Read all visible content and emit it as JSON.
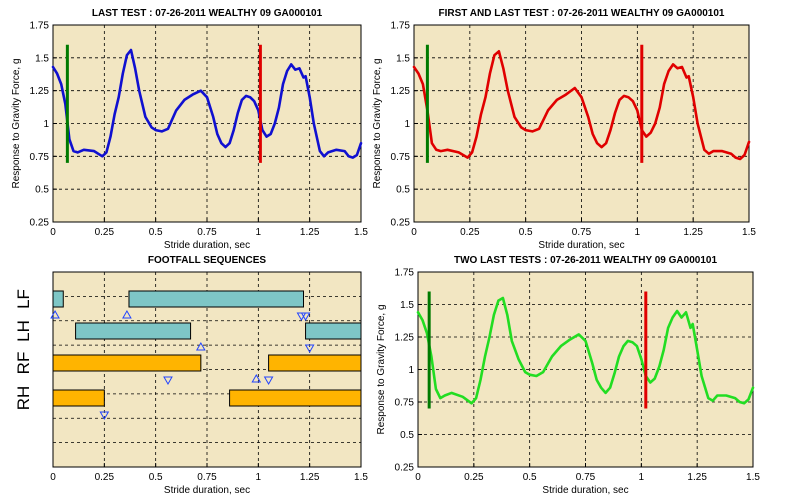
{
  "colors": {
    "plot_bg": "#f2e6c2",
    "grid": "#000000",
    "marker_start": "#007a00",
    "marker_end": "#e00000",
    "bar_front": "#7ec6c6",
    "bar_hind": "#ffb400",
    "triangle": "#2244ff"
  },
  "chart_data": [
    {
      "id": "last-test",
      "type": "line",
      "title": "LAST TEST : 07-26-2011 WEALTHY 09 GA000101",
      "xlabel": "Stride duration, sec",
      "ylabel": "Response to Gravity Force, g",
      "xlim": [
        0,
        1.5
      ],
      "ylim": [
        0.25,
        1.75
      ],
      "xticks": [
        "0",
        "0.25",
        "0.5",
        "0.75",
        "1",
        "1.25",
        "1.5"
      ],
      "yticks": [
        "0.25",
        "0.5",
        "0.75",
        "1",
        "1.25",
        "1.5",
        "1.75"
      ],
      "grid": true,
      "line_color": "#1010d0",
      "markers": [
        {
          "x": 0.07,
          "y0": 0.7,
          "y1": 1.6,
          "color": "#007a00"
        },
        {
          "x": 1.01,
          "y0": 0.7,
          "y1": 1.6,
          "color": "#e00000"
        }
      ],
      "series": [
        {
          "x": [
            0,
            0.02,
            0.04,
            0.06,
            0.08,
            0.1,
            0.12,
            0.15,
            0.2,
            0.24,
            0.26,
            0.28,
            0.3,
            0.32,
            0.34,
            0.36,
            0.38,
            0.4,
            0.42,
            0.45,
            0.48,
            0.5,
            0.53,
            0.56,
            0.6,
            0.64,
            0.68,
            0.72,
            0.75,
            0.78,
            0.8,
            0.82,
            0.84,
            0.86,
            0.88,
            0.9,
            0.92,
            0.94,
            0.96,
            0.98,
            1.0,
            1.02,
            1.04,
            1.06,
            1.08,
            1.1,
            1.12,
            1.14,
            1.16,
            1.18,
            1.2,
            1.22,
            1.23,
            1.25,
            1.27,
            1.3,
            1.32,
            1.34,
            1.38,
            1.42,
            1.44,
            1.46,
            1.48,
            1.5
          ],
          "y": [
            1.43,
            1.38,
            1.3,
            1.15,
            0.88,
            0.79,
            0.78,
            0.8,
            0.79,
            0.75,
            0.78,
            0.9,
            1.07,
            1.2,
            1.38,
            1.52,
            1.56,
            1.42,
            1.25,
            1.05,
            0.97,
            0.95,
            0.94,
            0.96,
            1.1,
            1.18,
            1.22,
            1.25,
            1.2,
            1.05,
            0.92,
            0.85,
            0.82,
            0.85,
            0.95,
            1.08,
            1.18,
            1.21,
            1.2,
            1.17,
            1.1,
            0.95,
            0.9,
            0.92,
            1.0,
            1.12,
            1.3,
            1.4,
            1.45,
            1.41,
            1.42,
            1.35,
            1.36,
            1.2,
            1.0,
            0.79,
            0.75,
            0.78,
            0.8,
            0.79,
            0.75,
            0.74,
            0.76,
            0.85
          ]
        }
      ]
    },
    {
      "id": "first-and-last-test",
      "type": "line",
      "title": "FIRST AND LAST TEST : 07-26-2011 WEALTHY 09 GA000101",
      "xlabel": "Stride duration, sec",
      "ylabel": "Response to Gravity Force, g",
      "xlim": [
        0,
        1.5
      ],
      "ylim": [
        0.25,
        1.75
      ],
      "xticks": [
        "0",
        "0.25",
        "0.5",
        "0.75",
        "1",
        "1.25",
        "1.5"
      ],
      "yticks": [
        "0.25",
        "0.5",
        "0.75",
        "1",
        "1.25",
        "1.5",
        "1.75"
      ],
      "grid": true,
      "line_color": "#e00000",
      "markers": [
        {
          "x": 0.06,
          "y0": 0.7,
          "y1": 1.6,
          "color": "#007a00"
        },
        {
          "x": 1.02,
          "y0": 0.7,
          "y1": 1.6,
          "color": "#e00000"
        }
      ],
      "series": [
        {
          "x": [
            0,
            0.02,
            0.04,
            0.06,
            0.08,
            0.1,
            0.12,
            0.15,
            0.2,
            0.24,
            0.26,
            0.28,
            0.3,
            0.32,
            0.34,
            0.36,
            0.38,
            0.4,
            0.42,
            0.45,
            0.48,
            0.5,
            0.53,
            0.56,
            0.6,
            0.64,
            0.68,
            0.72,
            0.75,
            0.78,
            0.8,
            0.82,
            0.84,
            0.86,
            0.88,
            0.9,
            0.92,
            0.94,
            0.96,
            0.98,
            1.0,
            1.02,
            1.04,
            1.06,
            1.08,
            1.1,
            1.12,
            1.14,
            1.16,
            1.18,
            1.2,
            1.22,
            1.23,
            1.25,
            1.27,
            1.3,
            1.32,
            1.34,
            1.38,
            1.42,
            1.44,
            1.46,
            1.48,
            1.5
          ],
          "y": [
            1.43,
            1.38,
            1.3,
            1.1,
            0.85,
            0.8,
            0.79,
            0.8,
            0.78,
            0.74,
            0.78,
            0.9,
            1.07,
            1.2,
            1.38,
            1.52,
            1.55,
            1.42,
            1.25,
            1.05,
            0.97,
            0.95,
            0.94,
            0.96,
            1.1,
            1.18,
            1.22,
            1.27,
            1.2,
            1.05,
            0.92,
            0.85,
            0.82,
            0.85,
            0.95,
            1.08,
            1.18,
            1.21,
            1.2,
            1.17,
            1.1,
            0.95,
            0.9,
            0.93,
            1.0,
            1.12,
            1.3,
            1.4,
            1.45,
            1.42,
            1.43,
            1.35,
            1.36,
            1.2,
            1.0,
            0.8,
            0.77,
            0.79,
            0.79,
            0.77,
            0.74,
            0.73,
            0.76,
            0.86
          ]
        }
      ]
    },
    {
      "id": "footfall-sequences",
      "type": "bar",
      "title": "FOOTFALL SEQUENCES",
      "xlabel": "Stride duration, sec",
      "ylabel": "",
      "xlim": [
        0,
        1.5
      ],
      "xticks": [
        "0",
        "0.25",
        "0.5",
        "0.75",
        "1",
        "1.25",
        "1.5"
      ],
      "categories": [
        "LF",
        "LH",
        "RF",
        "RH"
      ],
      "grid": true,
      "intervals": [
        {
          "lane": "LF",
          "start": 0.0,
          "end": 0.05,
          "kind": "front"
        },
        {
          "lane": "LF",
          "start": 0.37,
          "end": 1.22,
          "kind": "front"
        },
        {
          "lane": "LH",
          "start": 0.11,
          "end": 0.67,
          "kind": "front"
        },
        {
          "lane": "LH",
          "start": 1.23,
          "end": 1.5,
          "kind": "front"
        },
        {
          "lane": "RF",
          "start": 0.0,
          "end": 0.72,
          "kind": "hind"
        },
        {
          "lane": "RF",
          "start": 1.05,
          "end": 1.5,
          "kind": "hind"
        },
        {
          "lane": "RH",
          "start": 0.0,
          "end": 0.25,
          "kind": "hind"
        },
        {
          "lane": "RH",
          "start": 0.86,
          "end": 1.5,
          "kind": "hind"
        }
      ],
      "triangles": [
        {
          "x": 0.01,
          "lane": "LF",
          "dir": "up"
        },
        {
          "x": 0.36,
          "lane": "LF",
          "dir": "up"
        },
        {
          "x": 1.21,
          "lane": "LF",
          "dir": "down"
        },
        {
          "x": 1.23,
          "lane": "LF",
          "dir": "down"
        },
        {
          "x": 0.72,
          "lane": "LH",
          "dir": "up"
        },
        {
          "x": 1.25,
          "lane": "LH",
          "dir": "down"
        },
        {
          "x": 0.99,
          "lane": "RF",
          "dir": "up"
        },
        {
          "x": 0.56,
          "lane": "RF",
          "dir": "down"
        },
        {
          "x": 1.05,
          "lane": "RF",
          "dir": "down"
        },
        {
          "x": 0.25,
          "lane": "RH",
          "dir": "down"
        }
      ]
    },
    {
      "id": "two-last-tests",
      "type": "line",
      "title": "TWO LAST TESTS : 07-26-2011 WEALTHY 09 GA000101",
      "xlabel": "Stride duration, sec",
      "ylabel": "Response to Gravity Force, g",
      "xlim": [
        0,
        1.5
      ],
      "ylim": [
        0.25,
        1.75
      ],
      "xticks": [
        "0",
        "0.25",
        "0.5",
        "0.75",
        "1",
        "1.25",
        "1.5"
      ],
      "yticks": [
        "0.25",
        "0.5",
        "0.75",
        "1",
        "1.25",
        "1.5",
        "1.75"
      ],
      "grid": true,
      "line_color": "#22dd22",
      "markers": [
        {
          "x": 0.05,
          "y0": 0.7,
          "y1": 1.6,
          "color": "#007a00"
        },
        {
          "x": 1.02,
          "y0": 0.7,
          "y1": 1.6,
          "color": "#e00000"
        }
      ],
      "series": [
        {
          "x": [
            0,
            0.02,
            0.04,
            0.06,
            0.08,
            0.1,
            0.12,
            0.15,
            0.2,
            0.24,
            0.26,
            0.28,
            0.3,
            0.32,
            0.34,
            0.36,
            0.38,
            0.4,
            0.42,
            0.45,
            0.48,
            0.5,
            0.53,
            0.56,
            0.6,
            0.64,
            0.68,
            0.72,
            0.75,
            0.78,
            0.8,
            0.82,
            0.84,
            0.86,
            0.88,
            0.9,
            0.92,
            0.94,
            0.96,
            0.98,
            1.0,
            1.02,
            1.04,
            1.06,
            1.08,
            1.1,
            1.12,
            1.14,
            1.16,
            1.18,
            1.2,
            1.22,
            1.23,
            1.25,
            1.27,
            1.3,
            1.32,
            1.34,
            1.38,
            1.42,
            1.44,
            1.46,
            1.48,
            1.5
          ],
          "y": [
            1.44,
            1.38,
            1.28,
            1.1,
            0.85,
            0.78,
            0.8,
            0.82,
            0.79,
            0.74,
            0.78,
            0.92,
            1.1,
            1.25,
            1.42,
            1.53,
            1.55,
            1.42,
            1.22,
            1.08,
            0.98,
            0.96,
            0.95,
            0.98,
            1.1,
            1.18,
            1.23,
            1.27,
            1.22,
            1.05,
            0.92,
            0.86,
            0.82,
            0.86,
            0.97,
            1.1,
            1.18,
            1.22,
            1.21,
            1.18,
            1.08,
            0.95,
            0.9,
            0.93,
            1.02,
            1.15,
            1.32,
            1.4,
            1.45,
            1.4,
            1.44,
            1.32,
            1.35,
            1.15,
            0.95,
            0.78,
            0.76,
            0.8,
            0.8,
            0.78,
            0.75,
            0.74,
            0.77,
            0.86
          ]
        }
      ]
    }
  ]
}
